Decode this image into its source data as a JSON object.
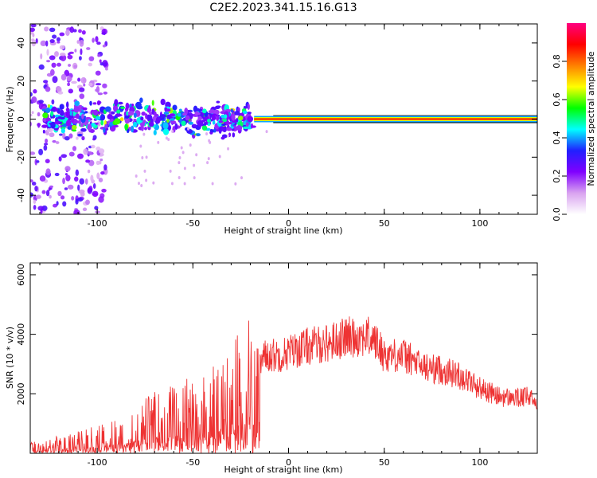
{
  "title": "C2E2.2023.341.15.16.G13",
  "chart_data": [
    {
      "type": "heatmap",
      "xlabel": "Height of straight line (km)",
      "ylabel": "Frequency (Hz)",
      "xlim": [
        -135,
        130
      ],
      "ylim": [
        -50,
        50
      ],
      "xticks": [
        -100,
        -50,
        0,
        50,
        100
      ],
      "yticks": [
        -40,
        -20,
        0,
        20,
        40
      ],
      "colorbar": {
        "label": "Normalized spectral amplitude",
        "range": [
          0,
          1
        ],
        "ticks": [
          "0.0",
          "0.2",
          "0.4",
          "0.6",
          "0.8"
        ],
        "colors": [
          "#ffffff",
          "#d9a3f0",
          "#8000ff",
          "#2020ff",
          "#00ffff",
          "#00ff00",
          "#ffff00",
          "#ff8000",
          "#ff0000",
          "#ff0080"
        ]
      },
      "bands": [
        {
          "x": [
            -135,
            -95
          ],
          "spread_hz": 50,
          "amplitude": 0.15
        },
        {
          "x": [
            -128,
            -18
          ],
          "spread_hz": 7,
          "amplitude": 0.4
        },
        {
          "x": [
            -18,
            130
          ],
          "spread_hz": 1.5,
          "amplitude": 0.85
        }
      ]
    },
    {
      "type": "line",
      "xlabel": "Height of straight line (km)",
      "ylabel": "SNR (10 * v/v)",
      "xlim": [
        -135,
        130
      ],
      "ylim": [
        0,
        6400
      ],
      "xticks": [
        -100,
        -50,
        0,
        50,
        100
      ],
      "yticks": [
        2000,
        4000,
        6000
      ],
      "series": [
        {
          "color": "#ee3333",
          "x": [
            -135,
            -125,
            -115,
            -105,
            -95,
            -85,
            -75,
            -65,
            -55,
            -45,
            -35,
            -25,
            -18,
            -15,
            -12,
            -5,
            0,
            5,
            10,
            20,
            30,
            40,
            45,
            50,
            60,
            65,
            70,
            80,
            90,
            100,
            110,
            120,
            125,
            130
          ],
          "values": [
            200,
            250,
            300,
            400,
            500,
            650,
            900,
            1100,
            1200,
            1300,
            1500,
            2000,
            2400,
            3000,
            3300,
            3300,
            3400,
            3500,
            3600,
            3700,
            3900,
            3950,
            3800,
            3300,
            3300,
            3100,
            2900,
            2800,
            2600,
            2200,
            1900,
            1850,
            1900,
            1700
          ]
        }
      ]
    }
  ]
}
